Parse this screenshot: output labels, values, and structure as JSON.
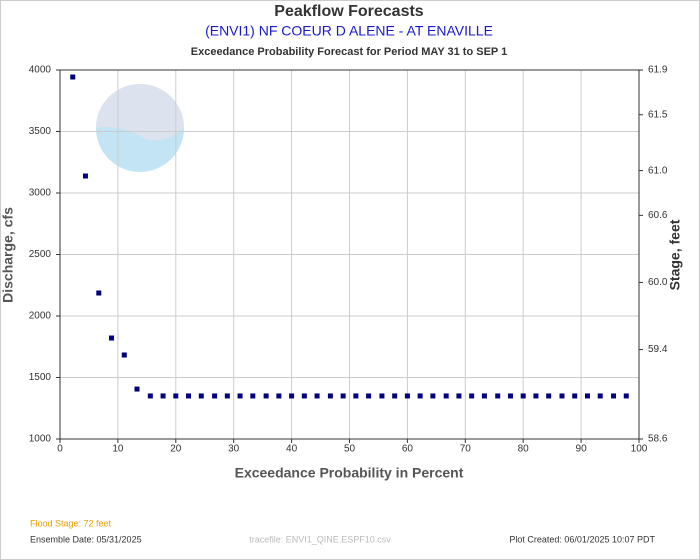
{
  "chart_data": {
    "type": "scatter",
    "title": "Peakflow Forecasts",
    "subtitle": "(ENVI1) NF COEUR D ALENE - AT ENAVILLE",
    "description": "Exceedance Probability Forecast for Period MAY 31 to SEP 1",
    "xlabel": "Exceedance Probability in Percent",
    "ylabel": "Discharge, cfs",
    "y2label": "Stage, feet",
    "xlim": [
      0,
      100
    ],
    "xticks": [
      0,
      10,
      20,
      30,
      40,
      50,
      60,
      70,
      80,
      90,
      100
    ],
    "ylim": [
      1000,
      4000
    ],
    "yticks": [
      1000,
      1500,
      2000,
      2500,
      3000,
      3500,
      4000
    ],
    "y2lim": [
      58.6,
      61.9
    ],
    "y2ticks": [
      58.6,
      59.4,
      {
        "value": 60,
        "label": "60.0"
      },
      60.6,
      {
        "value": 61,
        "label": "61.0"
      },
      61.5,
      61.9
    ],
    "grid": true,
    "color": "#000080",
    "x": [
      2.2,
      4.4,
      6.7,
      8.9,
      11.1,
      13.3,
      15.6,
      17.8,
      20,
      22.2,
      24.4,
      26.7,
      28.9,
      31.1,
      33.3,
      35.6,
      37.8,
      40,
      42.2,
      44.4,
      46.7,
      48.9,
      51.1,
      53.3,
      55.6,
      57.8,
      60,
      62.2,
      64.4,
      66.7,
      68.9,
      71.1,
      73.3,
      75.6,
      77.8,
      80,
      82.2,
      84.4,
      86.7,
      88.9,
      91.1,
      93.3,
      95.6,
      97.8
    ],
    "values": [
      3943,
      3138,
      2187,
      1821,
      1683,
      1406,
      1350,
      1350,
      1350,
      1350,
      1350,
      1350,
      1350,
      1350,
      1350,
      1350,
      1350,
      1350,
      1350,
      1350,
      1350,
      1350,
      1350,
      1350,
      1350,
      1350,
      1350,
      1350,
      1350,
      1350,
      1350,
      1350,
      1350,
      1350,
      1350,
      1350,
      1350,
      1350,
      1350,
      1350,
      1350,
      1350,
      1350,
      1350
    ],
    "footer": {
      "flood_stage": "Flood Stage: 72 feet",
      "ensemble_date": "Ensemble Date: 05/31/2025",
      "tracefile": "tracefile: ENVI1_QINE.ESPF10.csv",
      "plot_created": "Plot Created: 06/01/2025 10:07 PDT"
    }
  }
}
